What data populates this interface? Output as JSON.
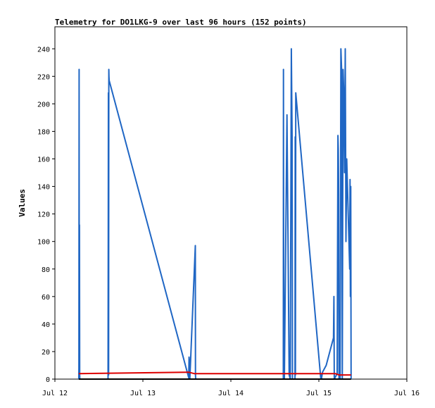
{
  "chart_data": {
    "type": "line",
    "title": "Telemetry for DO1LKG-9 over last 96 hours (152 points)",
    "xlabel": "",
    "ylabel": "Values",
    "x_tick_labels": [
      "Jul 12",
      "Jul 13",
      "Jul 14",
      "Jul 15",
      "Jul 16"
    ],
    "x_ticks": [
      0,
      24,
      48,
      72,
      96
    ],
    "xlim": [
      0,
      96
    ],
    "ylim": [
      0,
      256
    ],
    "y_ticks": [
      0,
      20,
      40,
      60,
      80,
      100,
      120,
      140,
      160,
      180,
      200,
      220,
      240
    ],
    "grid": false,
    "legend": "none",
    "series": [
      {
        "color": "#1f66c4",
        "x": [
          6.5,
          6.55,
          6.6,
          6.65,
          6.7,
          6.75,
          6.8,
          14.5,
          14.55,
          14.6,
          14.65,
          14.7,
          14.75,
          14.8,
          36.5,
          36.6,
          36.65,
          36.7,
          36.8,
          38.3,
          38.35,
          38.4,
          38.5,
          62.3,
          62.35,
          62.4,
          62.5,
          62.6,
          63.3,
          63.9,
          64.2,
          64.5,
          64.6,
          64.7,
          64.8,
          65.5,
          65.55,
          65.6,
          65.7,
          65.8,
          72.5,
          72.6,
          72.7,
          73.0,
          74.0,
          75.0,
          76.0,
          76.1,
          76.2,
          77.0,
          77.2,
          77.3,
          77.35,
          77.4,
          77.5,
          77.6,
          77.8,
          78.0,
          78.2,
          78.4,
          78.6,
          78.8,
          79.0,
          79.2,
          79.4,
          79.6,
          80.4,
          80.5,
          80.6,
          80.7,
          80.8
        ],
        "y": [
          0,
          8,
          225,
          8,
          112,
          3,
          0,
          0,
          104,
          208,
          3,
          225,
          220,
          217,
          1,
          16,
          14,
          5,
          0,
          97,
          3,
          0,
          0,
          0,
          225,
          80,
          0,
          0,
          192,
          3,
          0,
          240,
          205,
          176,
          0,
          0,
          176,
          3,
          208,
          205,
          1,
          3,
          0,
          5,
          10,
          20,
          30,
          60,
          0,
          4,
          177,
          167,
          150,
          135,
          0,
          0,
          0,
          240,
          225,
          0,
          225,
          208,
          150,
          240,
          100,
          160,
          80,
          145,
          60,
          140,
          0
        ]
      },
      {
        "color": "#dd0000",
        "x": [
          6.5,
          36.5,
          38.0,
          62.3,
          76.5,
          77.5,
          80.8
        ],
        "y": [
          4,
          5,
          4,
          4,
          4,
          3,
          3
        ]
      },
      {
        "color": "#000000",
        "x": [
          6.5,
          80.8
        ],
        "y": [
          0,
          0
        ]
      }
    ]
  }
}
